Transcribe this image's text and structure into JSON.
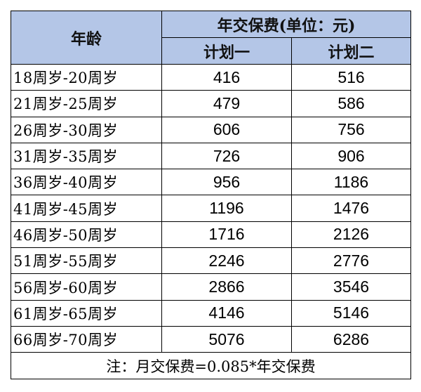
{
  "header": {
    "age": "年龄",
    "fee": "年交保费(单位：元)",
    "plans": [
      "计划一",
      "计划二"
    ]
  },
  "rows": [
    [
      "18周岁-20周岁",
      416,
      516
    ],
    [
      "21周岁-25周岁",
      479,
      586
    ],
    [
      "26周岁-30周岁",
      606,
      756
    ],
    [
      "31周岁-35周岁",
      726,
      906
    ],
    [
      "36周岁-40周岁",
      956,
      1186
    ],
    [
      "41周岁-45周岁",
      1196,
      1476
    ],
    [
      "46周岁-50周岁",
      1716,
      2126
    ],
    [
      "51周岁-55周岁",
      2246,
      2776
    ],
    [
      "56周岁-60周岁",
      2866,
      3546
    ],
    [
      "61周岁-65周岁",
      4146,
      5146
    ],
    [
      "66周岁-70周岁",
      5076,
      6286
    ]
  ],
  "note": "注：月交保费=0.085*年交保费"
}
